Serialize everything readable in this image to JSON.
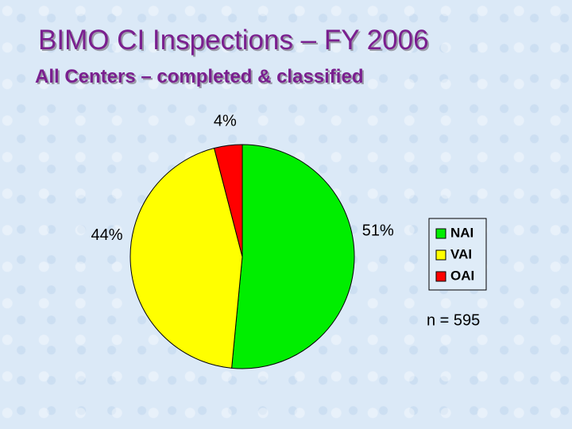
{
  "chart_data": {
    "type": "pie",
    "title": "BIMO CI Inspections – FY 2006",
    "subtitle": "All Centers – completed & classified",
    "categories": [
      "NAI",
      "VAI",
      "OAI"
    ],
    "values": [
      51,
      44,
      4
    ],
    "value_labels": [
      "51%",
      "44%",
      "4%"
    ],
    "colors": [
      "#00ee00",
      "#ffff00",
      "#ff0000"
    ],
    "legend": "right",
    "annotation": "n = 595"
  }
}
